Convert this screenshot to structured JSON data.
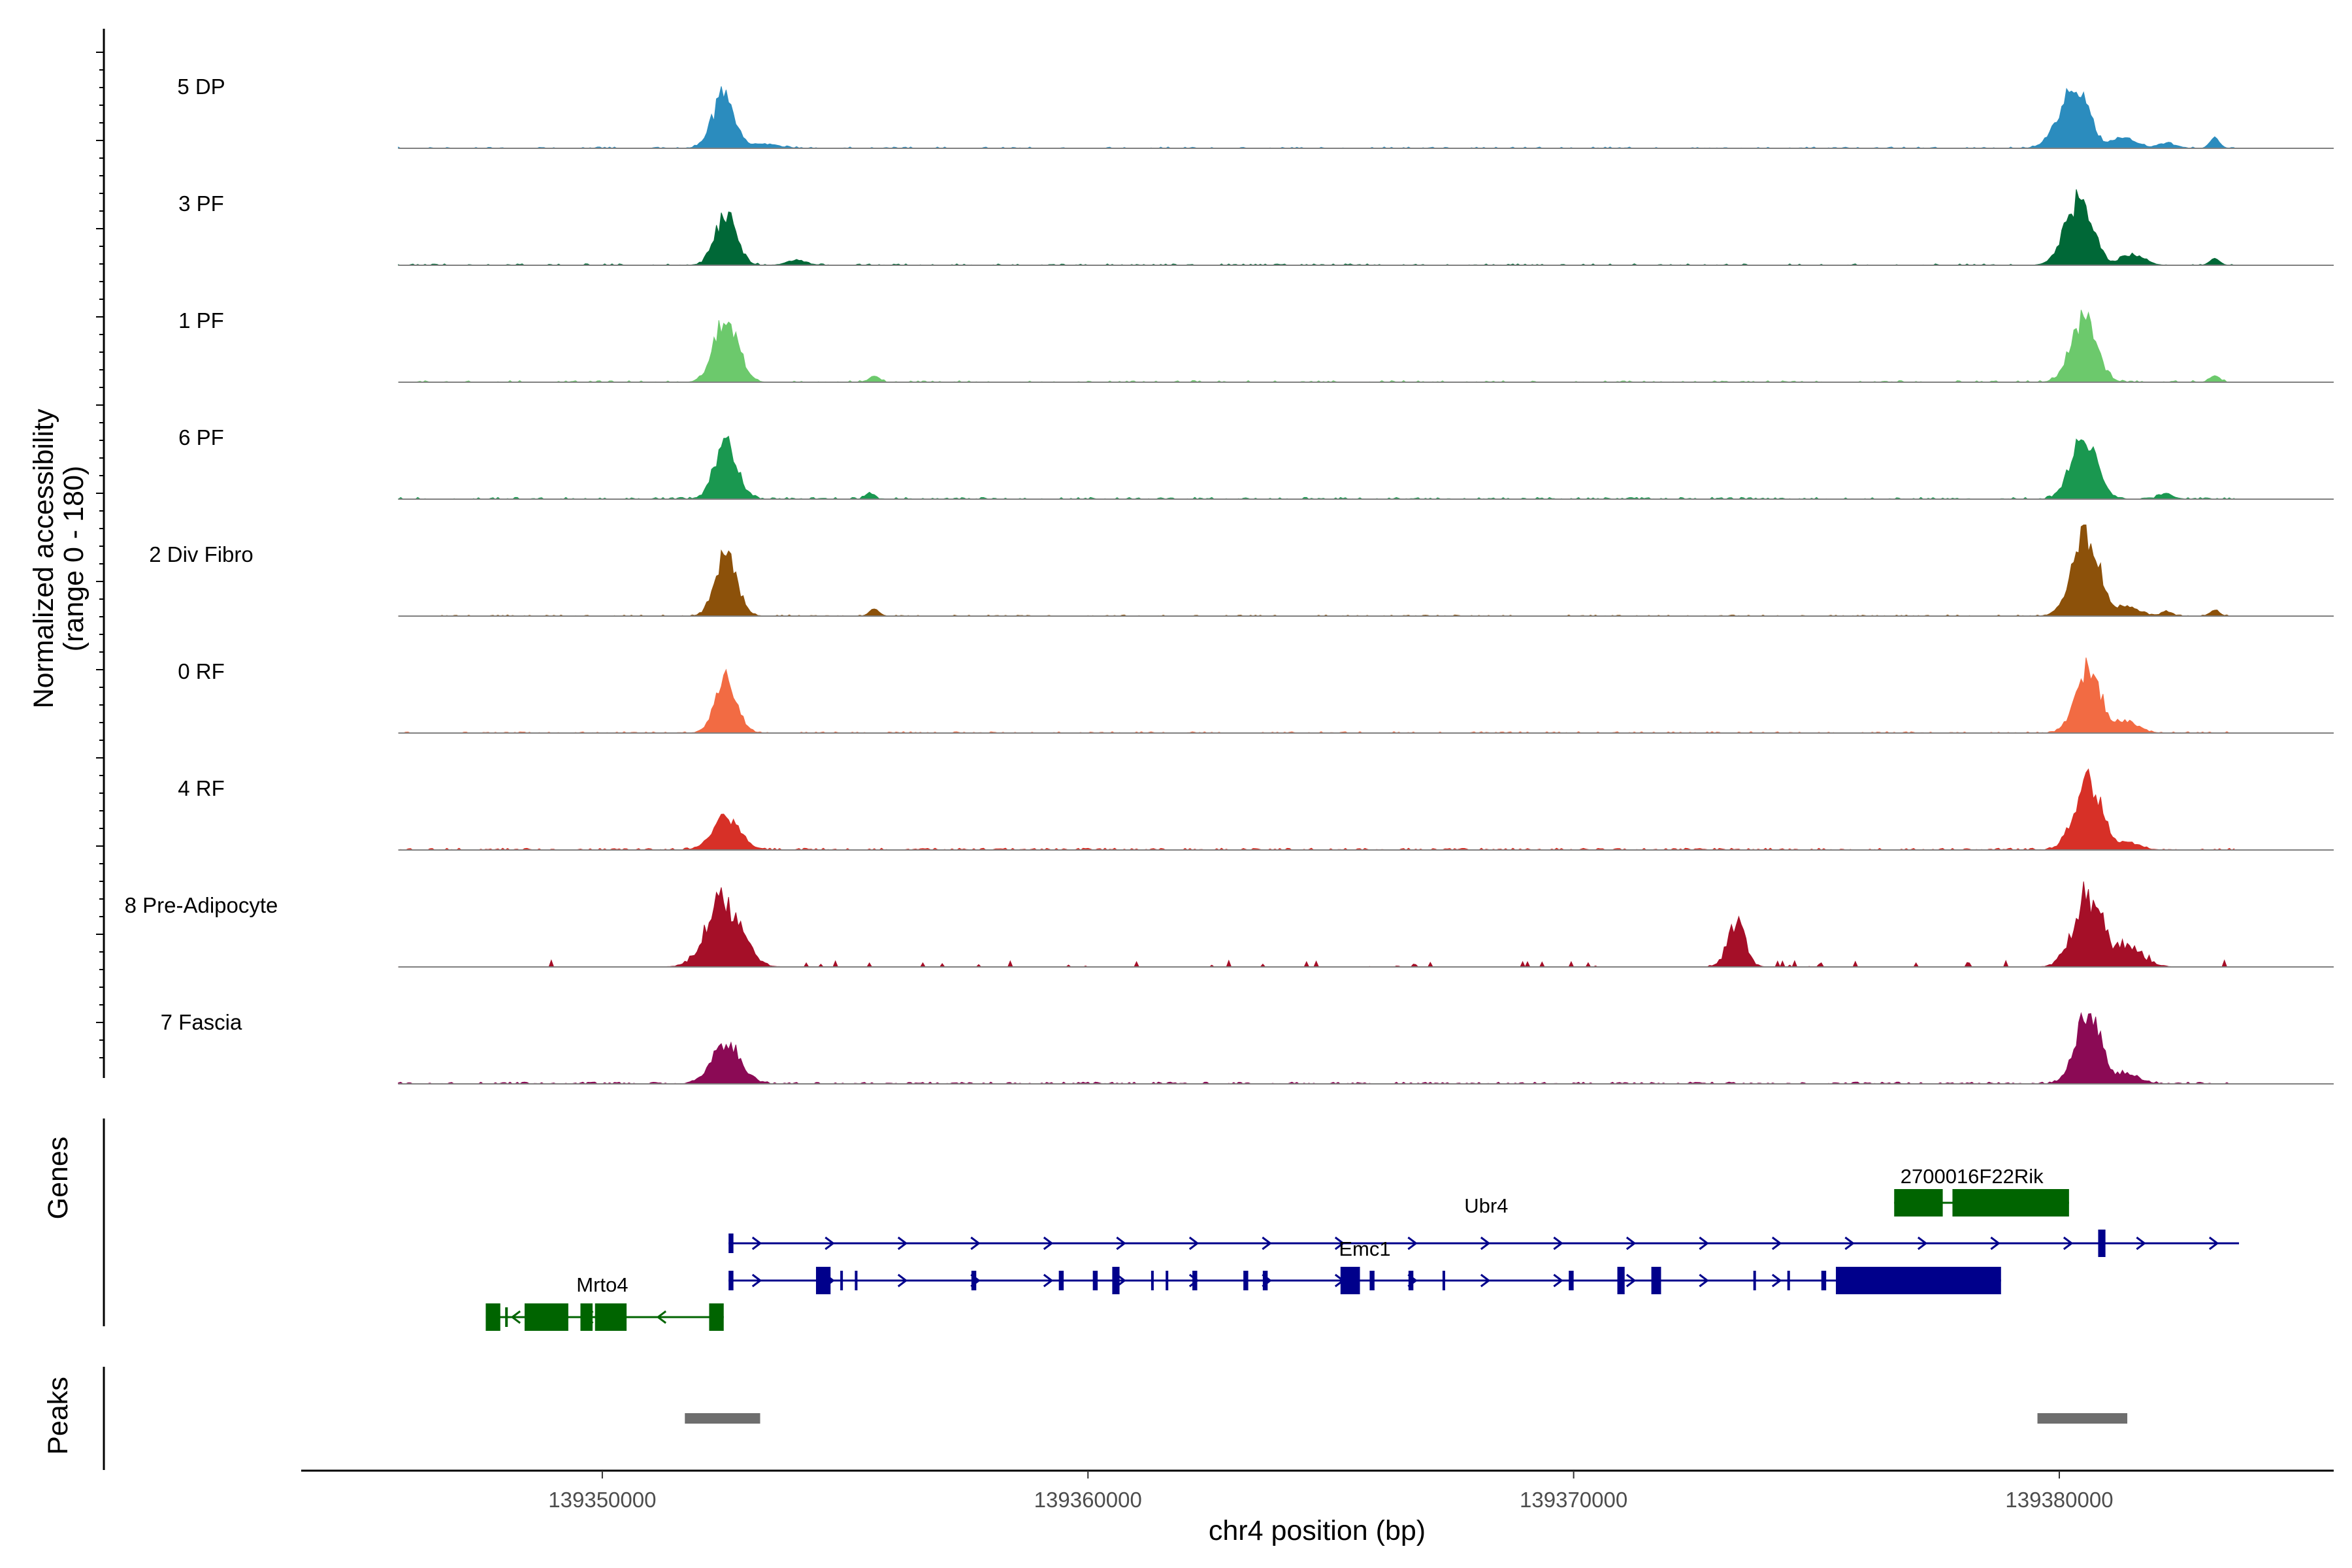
{
  "chart_data": {
    "type": "area",
    "title": "",
    "ylabel_line1": "Normalized accessibility",
    "ylabel_line2": "(range 0 - 180)",
    "ylim": [
      0,
      180
    ],
    "xlabel": "chr4 position (bp)",
    "xlim": [
      139343800,
      139385650
    ],
    "x_ticks": [
      139350000,
      139360000,
      139370000,
      139380000
    ],
    "x_tick_labels": [
      "139350000",
      "139360000",
      "139370000",
      "139380000"
    ],
    "bin_size_bp": 50,
    "coverage_start": 139345800,
    "coverage_end": 139383600,
    "tracks": [
      {
        "name": "5 DP",
        "color": "#2b8cbe",
        "peaks": [
          [
            139352500,
            123,
            230,
            45,
            0.38,
            1
          ],
          [
            139352550,
            120,
            55,
            9,
            0.4,
            1
          ],
          [
            139353200,
            12,
            350,
            15,
            0.3,
            1
          ],
          [
            139380300,
            145,
            300,
            70,
            0.36,
            1
          ],
          [
            139380550,
            140,
            50,
            9,
            0.4,
            1
          ],
          [
            139381300,
            25,
            280,
            30,
            0.3,
            1
          ],
          [
            139382200,
            12,
            200,
            10,
            0.3,
            1
          ],
          [
            139383200,
            22,
            100,
            6,
            0.3,
            0
          ]
        ],
        "bg_prob": 0.34,
        "bg_max": 2.6
      },
      {
        "name": "3 PF",
        "color": "#006837",
        "peaks": [
          [
            139352550,
            123,
            220,
            40,
            0.36,
            1
          ],
          [
            139352600,
            95,
            45,
            8,
            0.4,
            1
          ],
          [
            139354000,
            12,
            200,
            10,
            0.3,
            1
          ],
          [
            139380400,
            153,
            280,
            55,
            0.36,
            1
          ],
          [
            139380600,
            105,
            50,
            9,
            0.4,
            1
          ],
          [
            139381500,
            25,
            240,
            25,
            0.3,
            1
          ],
          [
            139383200,
            15,
            100,
            6,
            0.3,
            0
          ]
        ],
        "bg_prob": 0.3,
        "bg_max": 2.8
      },
      {
        "name": "1 PF",
        "color": "#6cc96c",
        "peaks": [
          [
            139352550,
            153,
            240,
            40,
            0.33,
            1
          ],
          [
            139352600,
            120,
            45,
            10,
            0.4,
            1
          ],
          [
            139355600,
            14,
            100,
            8,
            0.3,
            0
          ],
          [
            139380500,
            153,
            260,
            55,
            0.36,
            1
          ],
          [
            139380650,
            120,
            50,
            10,
            0.4,
            1
          ],
          [
            139383200,
            14,
            100,
            6,
            0.3,
            0
          ]
        ],
        "bg_prob": 0.32,
        "bg_max": 3.2
      },
      {
        "name": "6 PF",
        "color": "#1a9850",
        "peaks": [
          [
            139352550,
            135,
            230,
            40,
            0.36,
            1
          ],
          [
            139352650,
            110,
            45,
            9,
            0.4,
            1
          ],
          [
            139355500,
            12,
            90,
            6,
            0.3,
            0
          ],
          [
            139380500,
            153,
            260,
            55,
            0.36,
            1
          ],
          [
            139380650,
            125,
            50,
            10,
            0.4,
            1
          ],
          [
            139382200,
            12,
            150,
            7,
            0.3,
            1
          ]
        ],
        "bg_prob": 0.44,
        "bg_max": 3.5
      },
      {
        "name": "2 Div Fibro",
        "color": "#8c510a",
        "peaks": [
          [
            139352550,
            143,
            220,
            45,
            0.33,
            1
          ],
          [
            139352650,
            108,
            45,
            8,
            0.4,
            1
          ],
          [
            139355600,
            15,
            100,
            7,
            0.3,
            0
          ],
          [
            139380550,
            190,
            280,
            60,
            0.35,
            1
          ],
          [
            139380700,
            140,
            50,
            10,
            0.4,
            1
          ],
          [
            139381300,
            22,
            300,
            20,
            0.3,
            1
          ],
          [
            139382200,
            10,
            120,
            6,
            0.3,
            1
          ],
          [
            139383200,
            12,
            100,
            6,
            0.3,
            0
          ]
        ],
        "bg_prob": 0.36,
        "bg_max": 2.3
      },
      {
        "name": "0 RF",
        "color": "#f26b43",
        "peaks": [
          [
            139352550,
            126,
            220,
            40,
            0.33,
            1
          ],
          [
            139352650,
            100,
            45,
            8,
            0.4,
            1
          ],
          [
            139380600,
            153,
            260,
            50,
            0.36,
            1
          ],
          [
            139380750,
            135,
            50,
            10,
            0.4,
            1
          ],
          [
            139381300,
            30,
            280,
            20,
            0.3,
            1
          ]
        ],
        "bg_prob": 0.38,
        "bg_max": 2.6
      },
      {
        "name": "4 RF",
        "color": "#d73027",
        "peaks": [
          [
            139352550,
            78,
            280,
            35,
            0.33,
            1
          ],
          [
            139352650,
            56,
            60,
            8,
            0.4,
            1
          ],
          [
            139380600,
            160,
            280,
            55,
            0.36,
            1
          ],
          [
            139380750,
            130,
            50,
            9,
            0.4,
            1
          ],
          [
            139381300,
            18,
            300,
            15,
            0.3,
            1
          ]
        ],
        "bg_prob": 0.5,
        "bg_max": 3.6
      },
      {
        "name": "8 Pre-Adipocyte",
        "color": "#a50f28",
        "peaks": [
          [
            139352500,
            165,
            350,
            40,
            0.45,
            1
          ],
          [
            139352600,
            140,
            80,
            10,
            0.5,
            1
          ],
          [
            139373350,
            110,
            180,
            20,
            0.45,
            1
          ],
          [
            139380600,
            190,
            300,
            55,
            0.45,
            1
          ],
          [
            139380700,
            160,
            60,
            10,
            0.5,
            1
          ],
          [
            139381300,
            60,
            350,
            25,
            0.45,
            1
          ]
        ],
        "bg_prob": 0.08,
        "bg_max": 14
      },
      {
        "name": "7 Fascia",
        "color": "#8b0a55",
        "peaks": [
          [
            139352550,
            100,
            280,
            40,
            0.36,
            1
          ],
          [
            139352700,
            80,
            60,
            9,
            0.4,
            1
          ],
          [
            139380600,
            170,
            260,
            50,
            0.36,
            1
          ],
          [
            139380750,
            135,
            50,
            9,
            0.4,
            1
          ],
          [
            139381300,
            25,
            300,
            20,
            0.3,
            1
          ]
        ],
        "bg_prob": 0.5,
        "bg_max": 3.6
      }
    ],
    "genes_title": "Genes",
    "peaks_title": "Peaks",
    "genes": [
      {
        "name": "2700016F22Rik",
        "strand": "-",
        "color": "#006400",
        "start": 139376600,
        "end": 139380200,
        "exons": [
          [
            139376600,
            139377600
          ],
          [
            139377800,
            139380200
          ]
        ],
        "label_x": 139378200,
        "row": 0
      },
      {
        "name": "Ubr4",
        "strand": "+",
        "color": "#00008b",
        "start": 139352600,
        "end": 139383700,
        "exons": [
          [
            139352600,
            139352700
          ],
          [
            139380800,
            139380950
          ]
        ],
        "label_x": 139368200,
        "row": 1
      },
      {
        "name": "Emc1",
        "strand": "+",
        "color": "#00008b",
        "start": 139352600,
        "end": 139378800,
        "exons": [
          [
            139352600,
            139352700
          ],
          [
            139354400,
            139354700
          ],
          [
            139354900,
            139354950
          ],
          [
            139355200,
            139355250
          ],
          [
            139357600,
            139357700
          ],
          [
            139359400,
            139359500
          ],
          [
            139360100,
            139360200
          ],
          [
            139360500,
            139360650
          ],
          [
            139361300,
            139361350
          ],
          [
            139361600,
            139361650
          ],
          [
            139362150,
            139362250
          ],
          [
            139363200,
            139363300
          ],
          [
            139363600,
            139363700
          ],
          [
            139365200,
            139365600
          ],
          [
            139365800,
            139365900
          ],
          [
            139366600,
            139366700
          ],
          [
            139367300,
            139367350
          ],
          [
            139369900,
            139370000
          ],
          [
            139370900,
            139371050
          ],
          [
            139371600,
            139371800
          ],
          [
            139373700,
            139373750
          ],
          [
            139374400,
            139374450
          ],
          [
            139375100,
            139375200
          ],
          [
            139375400,
            139378800
          ]
        ],
        "label_x": 139365700,
        "row": 2
      },
      {
        "name": "Mrto4",
        "strand": "-",
        "color": "#006400",
        "start": 139347600,
        "end": 139352500,
        "exons": [
          [
            139347600,
            139347900
          ],
          [
            139348000,
            139348050
          ],
          [
            139348400,
            139349300
          ],
          [
            139349550,
            139349800
          ],
          [
            139349850,
            139350500
          ],
          [
            139352200,
            139352500
          ]
        ],
        "label_x": 139350000,
        "row": 3
      }
    ],
    "peak_regions": [
      [
        139351700,
        139353250
      ],
      [
        139379550,
        139381400
      ]
    ],
    "peak_color": "#6e6e6e"
  }
}
